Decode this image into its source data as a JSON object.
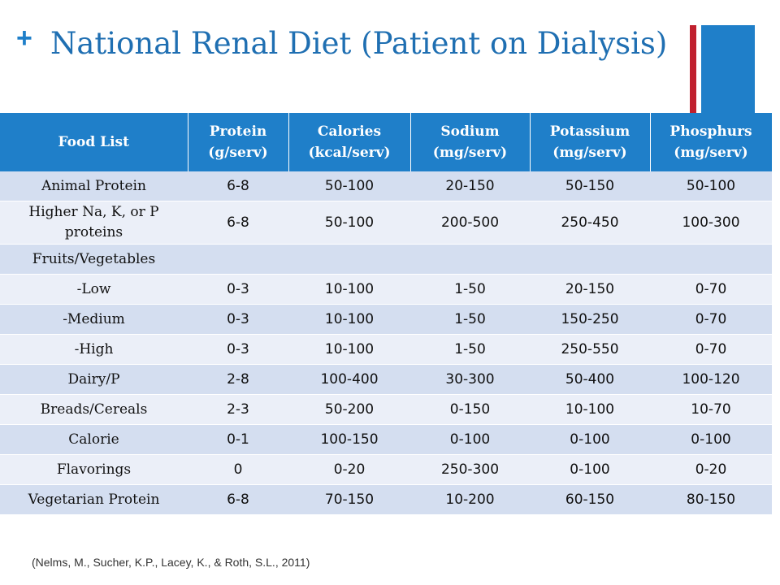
{
  "slide": {
    "plus_icon": "+",
    "title": "National Renal Diet (Patient on Dialysis)",
    "citation": "(Nelms, M., Sucher, K.P., Lacey, K., & Roth, S.L., 2011)",
    "accent_colors": {
      "red": "#c0202e",
      "blue": "#1f7fc9"
    }
  },
  "table": {
    "headers": [
      {
        "line1": "Food List",
        "line2": ""
      },
      {
        "line1": "Protein",
        "line2": "(g/serv)"
      },
      {
        "line1": "Calories",
        "line2": "(kcal/serv)"
      },
      {
        "line1": "Sodium",
        "line2": "(mg/serv)"
      },
      {
        "line1": "Potassium",
        "line2": "(mg/serv)"
      },
      {
        "line1": "Phosphurs",
        "line2": "(mg/serv)"
      }
    ],
    "rows": [
      [
        "Animal Protein",
        "6-8",
        "50-100",
        "20-150",
        "50-150",
        "50-100"
      ],
      [
        "Higher Na, K, or P proteins",
        "6-8",
        "50-100",
        "200-500",
        "250-450",
        "100-300"
      ],
      [
        "Fruits/Vegetables",
        "",
        "",
        "",
        "",
        ""
      ],
      [
        "-Low",
        "0-3",
        "10-100",
        "1-50",
        "20-150",
        "0-70"
      ],
      [
        "-Medium",
        "0-3",
        "10-100",
        "1-50",
        "150-250",
        "0-70"
      ],
      [
        "-High",
        "0-3",
        "10-100",
        "1-50",
        "250-550",
        "0-70"
      ],
      [
        "Dairy/P",
        "2-8",
        "100-400",
        "30-300",
        "50-400",
        "100-120"
      ],
      [
        "Breads/Cereals",
        "2-3",
        "50-200",
        "0-150",
        "10-100",
        "10-70"
      ],
      [
        "Calorie",
        "0-1",
        "100-150",
        "0-100",
        "0-100",
        "0-100"
      ],
      [
        "Flavorings",
        "0",
        "0-20",
        "250-300",
        "0-100",
        "0-20"
      ],
      [
        "Vegetarian Protein",
        "6-8",
        "70-150",
        "10-200",
        "60-150",
        "80-150"
      ]
    ]
  }
}
